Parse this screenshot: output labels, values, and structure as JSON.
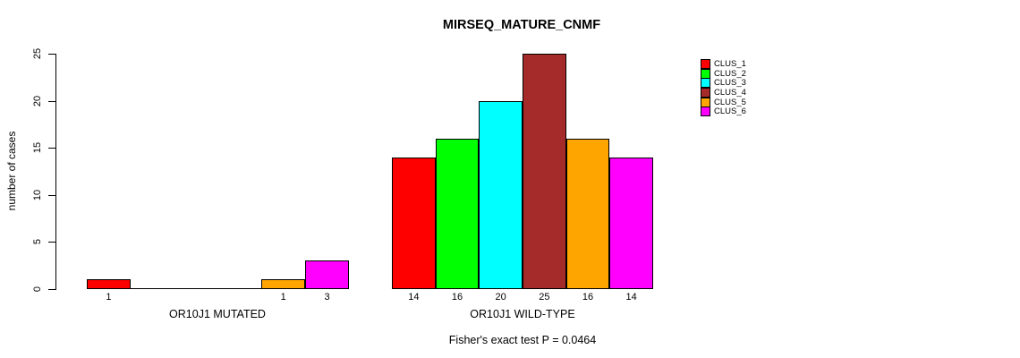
{
  "chart_data": {
    "type": "bar",
    "title": "MIRSEQ_MATURE_CNMF",
    "ylabel": "number of cases",
    "xlabel": "",
    "ylim": [
      0,
      25
    ],
    "yticks": [
      0,
      5,
      10,
      15,
      20,
      25
    ],
    "grid": false,
    "background": "#ffffff",
    "series_colors": [
      "#FF0000",
      "#00FF00",
      "#00FFFF",
      "#A52A2A",
      "#FFA500",
      "#FF00FF"
    ],
    "legend": {
      "position": "top-right",
      "entries": [
        {
          "label": "CLUS_1",
          "color": "#FF0000"
        },
        {
          "label": "CLUS_2",
          "color": "#00FF00"
        },
        {
          "label": "CLUS_3",
          "color": "#00FFFF"
        },
        {
          "label": "CLUS_4",
          "color": "#A52A2A"
        },
        {
          "label": "CLUS_5",
          "color": "#FFA500"
        },
        {
          "label": "CLUS_6",
          "color": "#FF00FF"
        }
      ]
    },
    "groups": [
      {
        "label": "OR10J1 MUTATED",
        "categories": [
          "CLUS_1",
          "CLUS_2",
          "CLUS_3",
          "CLUS_4",
          "CLUS_5",
          "CLUS_6"
        ],
        "values": [
          1,
          0,
          0,
          0,
          1,
          3
        ],
        "bar_labels": [
          "1",
          "",
          "",
          "",
          "1",
          "3"
        ]
      },
      {
        "label": "OR10J1 WILD-TYPE",
        "categories": [
          "CLUS_1",
          "CLUS_2",
          "CLUS_3",
          "CLUS_4",
          "CLUS_5",
          "CLUS_6"
        ],
        "values": [
          14,
          16,
          20,
          25,
          16,
          14
        ],
        "bar_labels": [
          "14",
          "16",
          "20",
          "25",
          "16",
          "14"
        ]
      }
    ],
    "annotation": "Fisher's exact test P = 0.0464"
  }
}
